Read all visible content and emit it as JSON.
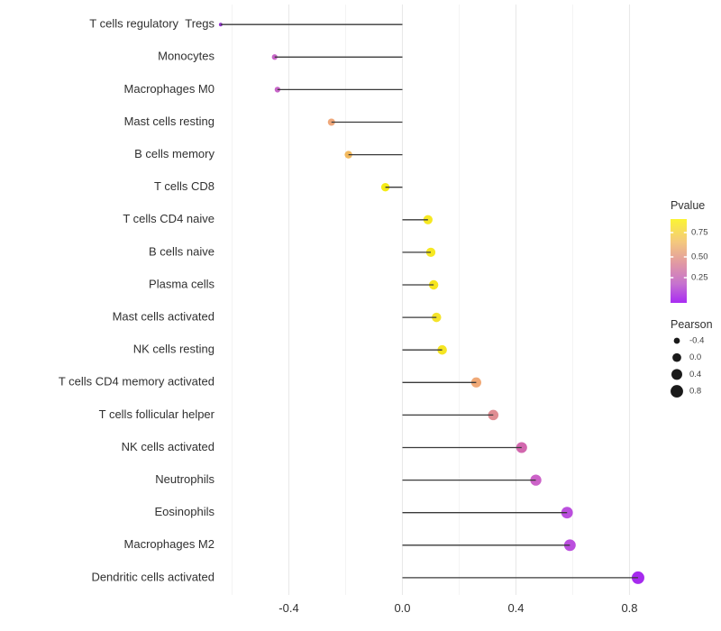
{
  "chart_data": {
    "type": "scatter",
    "subtype": "lollipop",
    "title": "",
    "xlabel": "",
    "ylabel": "",
    "x_tick_labels": [
      "-0.4",
      "0.0",
      "0.4",
      "0.8"
    ],
    "x_ticks": [
      -0.4,
      0.0,
      0.4,
      0.8
    ],
    "x_minor_ticks": [
      -0.6,
      -0.2,
      0.2,
      0.6
    ],
    "xlim": [
      -0.72,
      0.9
    ],
    "grid": "vertical-only",
    "legend_position": "right",
    "rows": [
      {
        "label": "T cells regulatory  Tregs",
        "pearson": -0.64,
        "pvalue_color": "#9232CE"
      },
      {
        "label": "Monocytes",
        "pearson": -0.45,
        "pvalue_color": "#C765C8"
      },
      {
        "label": "Macrophages M0",
        "pearson": -0.44,
        "pvalue_color": "#C765C8"
      },
      {
        "label": "Mast cells resting",
        "pearson": -0.25,
        "pvalue_color": "#EFA87B"
      },
      {
        "label": "B cells memory",
        "pearson": -0.19,
        "pvalue_color": "#F2B95F"
      },
      {
        "label": "T cells CD8",
        "pearson": -0.06,
        "pvalue_color": "#F5EB15"
      },
      {
        "label": "T cells CD4 naive",
        "pearson": 0.09,
        "pvalue_color": "#F6E822"
      },
      {
        "label": "B cells naive",
        "pearson": 0.1,
        "pvalue_color": "#F6E822"
      },
      {
        "label": "Plasma cells",
        "pearson": 0.11,
        "pvalue_color": "#F6E51F"
      },
      {
        "label": "Mast cells activated",
        "pearson": 0.12,
        "pvalue_color": "#F4E32A"
      },
      {
        "label": "NK cells resting",
        "pearson": 0.14,
        "pvalue_color": "#F5E522"
      },
      {
        "label": "T cells CD4 memory activated",
        "pearson": 0.26,
        "pvalue_color": "#F0A977"
      },
      {
        "label": "T cells follicular helper",
        "pearson": 0.32,
        "pvalue_color": "#E08E93"
      },
      {
        "label": "NK cells activated",
        "pearson": 0.42,
        "pvalue_color": "#D267AE"
      },
      {
        "label": "Neutrophils",
        "pearson": 0.47,
        "pvalue_color": "#CC62C8"
      },
      {
        "label": "Eosinophils",
        "pearson": 0.58,
        "pvalue_color": "#BB4FDE"
      },
      {
        "label": "Macrophages M2",
        "pearson": 0.59,
        "pvalue_color": "#BB4FDE"
      },
      {
        "label": "Dendritic cells activated",
        "pearson": 0.83,
        "pvalue_color": "#A62BEE"
      }
    ],
    "legend": {
      "pvalue": {
        "title": "Pvalue",
        "tick_labels": [
          "0.75",
          "0.50",
          "0.25"
        ],
        "gradient_stops": [
          "#FBF434",
          "#F4C97D",
          "#E29AA2",
          "#C673CE",
          "#A92BF3"
        ],
        "gradient_offsets": [
          0,
          0.27,
          0.52,
          0.77,
          1
        ]
      },
      "pearson": {
        "title": "Pearson",
        "size_labels": [
          "-0.4",
          "0.0",
          "0.4",
          "0.8"
        ],
        "size_values": [
          -0.4,
          0.0,
          0.4,
          0.8
        ],
        "dot_color": "#1A1A1A"
      }
    }
  },
  "colors": {
    "background": "#FFFFFF",
    "stem": "#3A3A3A",
    "axis_text": "#303030",
    "legend_text": "#303030",
    "legend_tick_text": "#404040",
    "grid_major": "#E9E9E9",
    "grid_minor": "#F4F4F4",
    "legend_tick_mark": "#FFFFFF"
  }
}
